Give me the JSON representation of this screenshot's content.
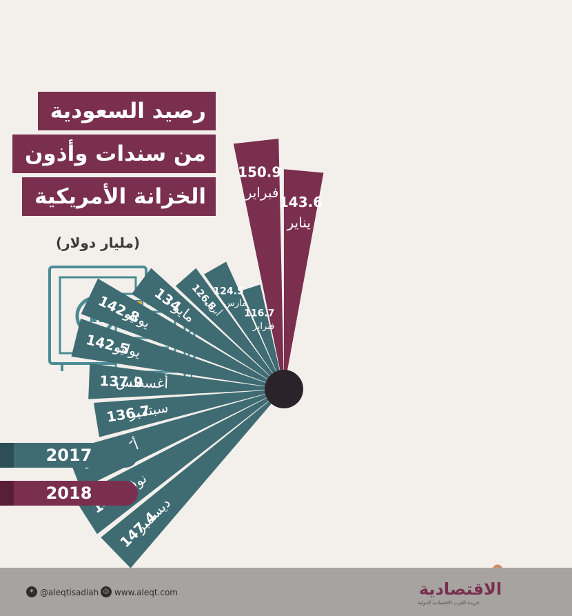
{
  "title_lines": [
    "رصيد السعودية",
    "من سندات وأذون",
    "الخزانة الأمريكية"
  ],
  "unit": "(مليار دولار)",
  "legend": [
    {
      "label": "2017",
      "color": "#3f6b73"
    },
    {
      "label": "2018",
      "color": "#7a2f4f"
    }
  ],
  "colors": {
    "y2017": "#3f6b73",
    "y2018": "#7a2f4f",
    "hub": "#2a2329",
    "background": "#f3efeb",
    "icon": "#4a8c93",
    "icon_accent": "#f2b134"
  },
  "chart_data": {
    "type": "bar",
    "series": [
      {
        "name": "2017",
        "categories": [
          "ديسمبر",
          "نوفمبر",
          "أكتوبر",
          "سبتمبر",
          "أغسطس",
          "يوليو",
          "يونيو",
          "مايو",
          "أبريل",
          "مارس",
          "فبراير"
        ],
        "values": [
          147.4,
          147.6,
          145.2,
          136.7,
          137.9,
          142.5,
          142.8,
          134,
          126.8,
          124.5,
          116.7
        ],
        "value_labels": [
          "147.4",
          "147.6",
          "145.2",
          "136.7",
          "137.9",
          "142.5",
          "142.8",
          "134",
          "126.8",
          "124.5",
          "116.7"
        ]
      },
      {
        "name": "2018",
        "categories": [
          "فبراير",
          "يناير"
        ],
        "values": [
          150.9,
          143.6
        ],
        "value_labels": [
          "150.9",
          "143.6"
        ]
      }
    ],
    "category_order": [
      "ديسمبر",
      "نوفمبر",
      "أكتوبر",
      "سبتمبر",
      "أغسطس",
      "يوليو",
      "يونيو",
      "مايو",
      "أبريل",
      "مارس",
      "فبراير",
      "فبراير",
      "يناير"
    ]
  },
  "footer": {
    "twitter": "@aleqtisadiah",
    "website": "www.aleqt.com",
    "brand": "الاقتصادية",
    "brand_sub": "جريدة العرب الاقتصادية الدولية"
  }
}
